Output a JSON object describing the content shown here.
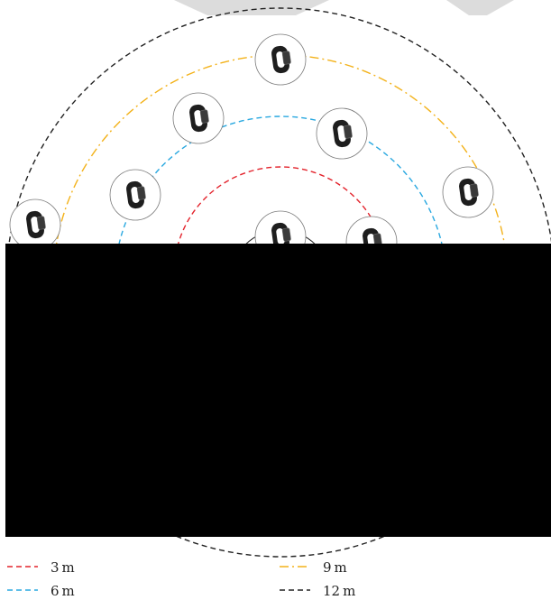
{
  "colors": {
    "ring_3m": "#e3232c",
    "ring_6m": "#29a8e0",
    "ring_9m": "#f3b21a",
    "ring_12m": "#222222",
    "occluder": "#000000",
    "top_shape": "#dcdcdc",
    "device_body": "#1e1e1e",
    "halo": "#7a7a7a"
  },
  "legend": [
    {
      "label": "3 m",
      "style": "dashed",
      "color_key": "ring_3m"
    },
    {
      "label": "9 m",
      "style": "dash-dot",
      "color_key": "ring_9m"
    },
    {
      "label": "6 m",
      "style": "dashed",
      "color_key": "ring_6m"
    },
    {
      "label": "12 m",
      "style": "dashed",
      "color_key": "ring_12m"
    }
  ],
  "device_icon": "wristband-tracker-icon",
  "device_count": 8
}
